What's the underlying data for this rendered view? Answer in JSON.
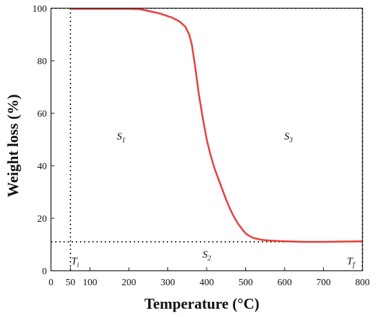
{
  "chart_data": {
    "type": "line",
    "title": "",
    "xlabel": "Temperature (°C)",
    "ylabel": "Weight loss (%)",
    "xlim": [
      0,
      800
    ],
    "ylim": [
      0,
      100
    ],
    "x_ticks": [
      0,
      50,
      100,
      200,
      300,
      400,
      500,
      600,
      700,
      800
    ],
    "y_ticks": [
      0,
      20,
      40,
      60,
      80,
      100
    ],
    "grid": false,
    "series": [
      {
        "color": "#e8403c",
        "x": [
          50,
          100,
          150,
          200,
          230,
          250,
          280,
          310,
          330,
          345,
          355,
          362,
          370,
          380,
          390,
          400,
          410,
          420,
          430,
          440,
          450,
          460,
          470,
          480,
          490,
          500,
          510,
          520,
          540,
          560,
          600,
          650,
          700,
          750,
          800
        ],
        "y": [
          99.8,
          99.8,
          99.8,
          99.8,
          99.6,
          99,
          98,
          96.5,
          95,
          93,
          90,
          86,
          78,
          67,
          58,
          50,
          44,
          39,
          35,
          31,
          27,
          23.5,
          20.5,
          18,
          16,
          14.2,
          13.2,
          12.5,
          11.8,
          11.5,
          11.2,
          11,
          11,
          11.1,
          11.2
        ]
      }
    ],
    "reference_lines": [
      {
        "axis": "x",
        "value": 50
      },
      {
        "axis": "x",
        "value": 800
      },
      {
        "axis": "y",
        "value": 100
      },
      {
        "axis": "y",
        "value": 11
      }
    ],
    "annotations": [
      {
        "main": "S",
        "sub": "1",
        "x": 180,
        "y": 50
      },
      {
        "main": "S",
        "sub": "3",
        "x": 610,
        "y": 50
      },
      {
        "main": "S",
        "sub": "2",
        "x": 400,
        "y": 5
      },
      {
        "main": "T",
        "sub": "i",
        "x": 62,
        "y": 2.5
      },
      {
        "main": "T",
        "sub": "f",
        "x": 770,
        "y": 2.5
      }
    ]
  }
}
